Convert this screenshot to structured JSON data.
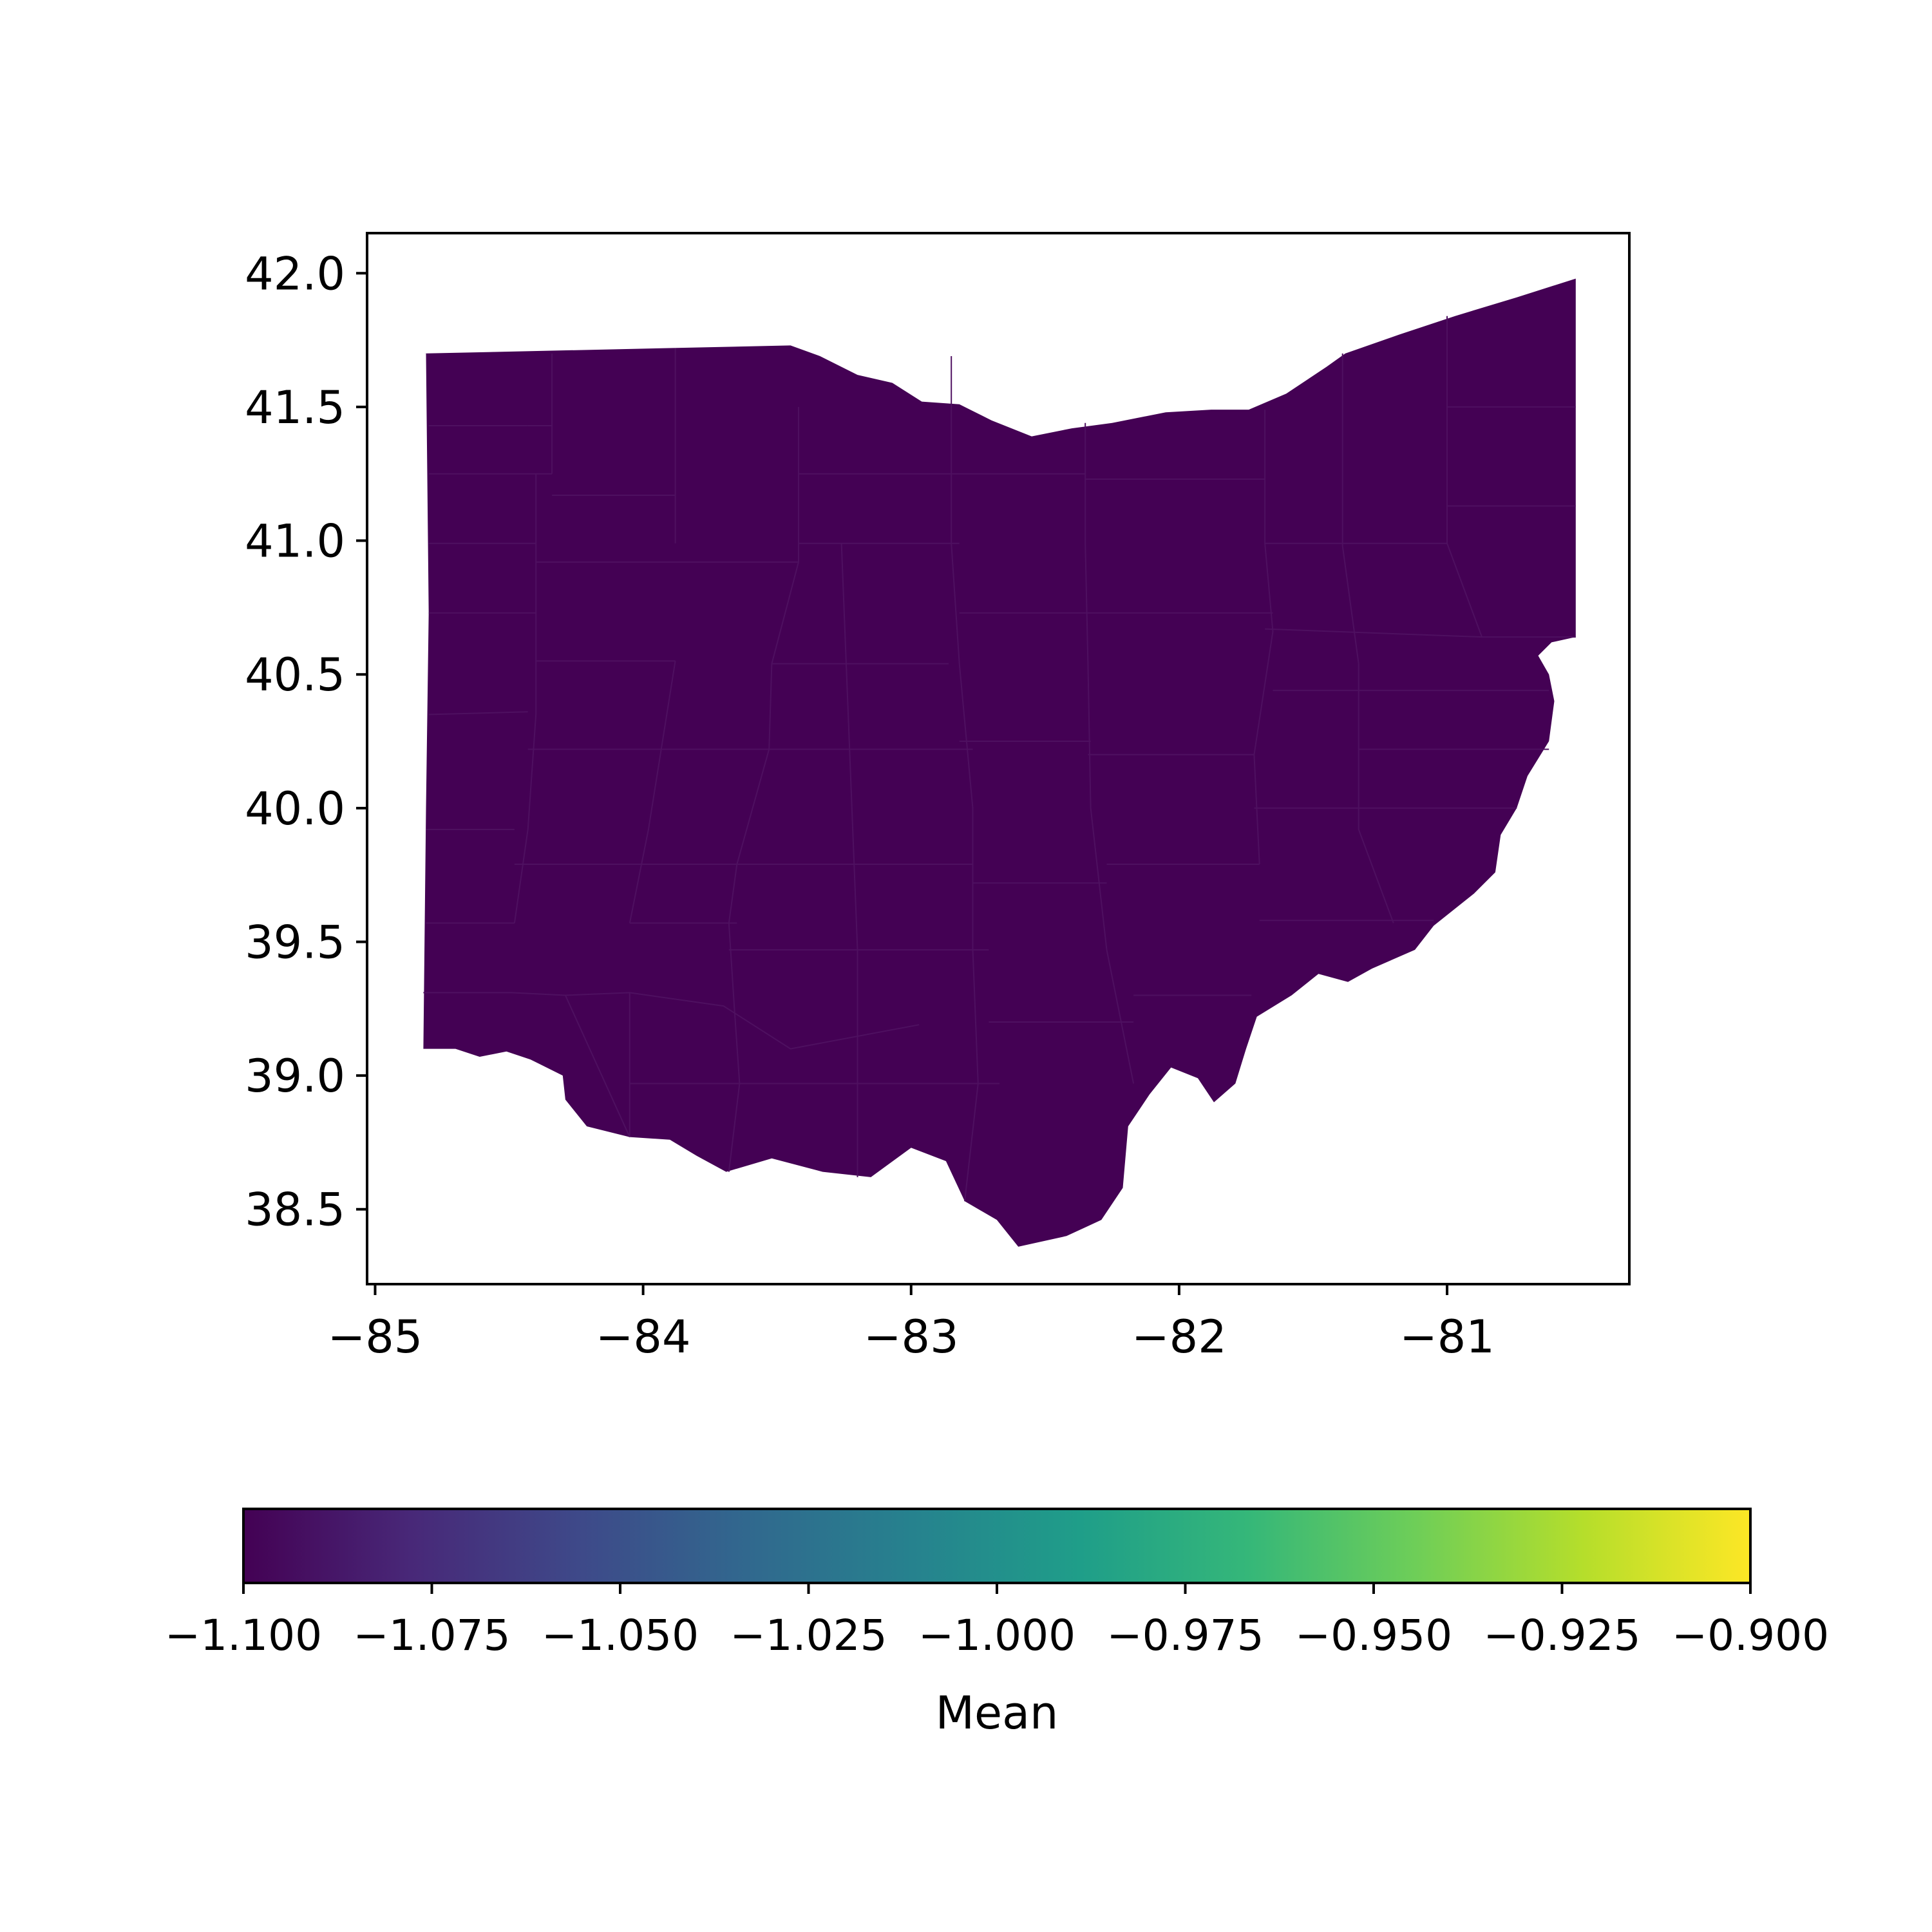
{
  "chart_data": {
    "type": "choropleth map",
    "region": "Ohio counties",
    "fill_value": -1.1,
    "x_axis": {
      "ticks": [
        -85,
        -84,
        -83,
        -82,
        -81
      ],
      "tick_labels": [
        "−85",
        "−84",
        "−83",
        "−82",
        "−81"
      ],
      "range": [
        -85.03,
        -80.32
      ]
    },
    "y_axis": {
      "ticks": [
        38.5,
        39.0,
        39.5,
        40.0,
        40.5,
        41.0,
        41.5,
        42.0
      ],
      "tick_labels": [
        "38.5",
        "39.0",
        "39.5",
        "40.0",
        "40.5",
        "41.0",
        "41.5",
        "42.0"
      ],
      "range": [
        38.22,
        42.15
      ]
    },
    "grid": false,
    "colorbar": {
      "label": "Mean",
      "orientation": "horizontal",
      "placement": "bottom",
      "colormap": "viridis",
      "range": [
        -1.1,
        -0.9
      ],
      "ticks": [
        -1.1,
        -1.075,
        -1.05,
        -1.025,
        -1.0,
        -0.975,
        -0.95,
        -0.925,
        -0.9
      ],
      "tick_labels": [
        "−1.100",
        "−1.075",
        "−1.050",
        "−1.025",
        "−1.000",
        "−0.975",
        "−0.950",
        "−0.925",
        "−0.900"
      ],
      "gradient_stops": [
        "#440154",
        "#482878",
        "#3e4989",
        "#31688e",
        "#26828e",
        "#1f9e89",
        "#35b779",
        "#6ece58",
        "#b5de2b",
        "#fde725"
      ]
    },
    "colors": {
      "region_fill": "#440154",
      "county_border": "#4e1060"
    },
    "outline_lonlat": [
      [
        -84.82,
        41.7
      ],
      [
        -83.45,
        41.73
      ],
      [
        -83.34,
        41.69
      ],
      [
        -83.2,
        41.62
      ],
      [
        -83.07,
        41.59
      ],
      [
        -82.96,
        41.52
      ],
      [
        -82.82,
        41.51
      ],
      [
        -82.7,
        41.45
      ],
      [
        -82.55,
        41.39
      ],
      [
        -82.4,
        41.42
      ],
      [
        -82.25,
        41.44
      ],
      [
        -82.05,
        41.48
      ],
      [
        -81.88,
        41.49
      ],
      [
        -81.74,
        41.49
      ],
      [
        -81.6,
        41.55
      ],
      [
        -81.45,
        41.65
      ],
      [
        -81.38,
        41.7
      ],
      [
        -81.18,
        41.77
      ],
      [
        -80.97,
        41.84
      ],
      [
        -80.74,
        41.91
      ],
      [
        -80.52,
        41.98
      ],
      [
        -80.52,
        40.64
      ],
      [
        -80.61,
        40.62
      ],
      [
        -80.66,
        40.57
      ],
      [
        -80.62,
        40.5
      ],
      [
        -80.6,
        40.4
      ],
      [
        -80.62,
        40.25
      ],
      [
        -80.7,
        40.12
      ],
      [
        -80.74,
        40.0
      ],
      [
        -80.8,
        39.9
      ],
      [
        -80.82,
        39.76
      ],
      [
        -80.9,
        39.68
      ],
      [
        -81.05,
        39.56
      ],
      [
        -81.12,
        39.47
      ],
      [
        -81.28,
        39.4
      ],
      [
        -81.37,
        39.35
      ],
      [
        -81.48,
        39.38
      ],
      [
        -81.58,
        39.3
      ],
      [
        -81.71,
        39.22
      ],
      [
        -81.75,
        39.1
      ],
      [
        -81.79,
        38.97
      ],
      [
        -81.87,
        38.9
      ],
      [
        -81.93,
        38.99
      ],
      [
        -82.03,
        39.03
      ],
      [
        -82.11,
        38.93
      ],
      [
        -82.19,
        38.81
      ],
      [
        -82.21,
        38.58
      ],
      [
        -82.29,
        38.46
      ],
      [
        -82.42,
        38.4
      ],
      [
        -82.6,
        38.36
      ],
      [
        -82.68,
        38.46
      ],
      [
        -82.8,
        38.53
      ],
      [
        -82.87,
        38.68
      ],
      [
        -83.0,
        38.73
      ],
      [
        -83.15,
        38.62
      ],
      [
        -83.33,
        38.64
      ],
      [
        -83.52,
        38.69
      ],
      [
        -83.69,
        38.64
      ],
      [
        -83.8,
        38.7
      ],
      [
        -83.9,
        38.76
      ],
      [
        -84.05,
        38.77
      ],
      [
        -84.21,
        38.81
      ],
      [
        -84.29,
        38.91
      ],
      [
        -84.3,
        39.0
      ],
      [
        -84.42,
        39.06
      ],
      [
        -84.51,
        39.09
      ],
      [
        -84.61,
        39.07
      ],
      [
        -84.7,
        39.1
      ],
      [
        -84.82,
        39.1
      ],
      [
        -84.81,
        40.0
      ],
      [
        -84.8,
        40.73
      ],
      [
        -84.81,
        41.7
      ]
    ],
    "county_lines_lonlat": [
      [
        [
          -84.8,
          41.43
        ],
        [
          -84.43,
          41.43
        ]
      ],
      [
        [
          -84.8,
          41.25
        ],
        [
          -84.34,
          41.25
        ]
      ],
      [
        [
          -84.8,
          40.99
        ],
        [
          -84.4,
          40.99
        ]
      ],
      [
        [
          -84.8,
          40.73
        ],
        [
          -84.4,
          40.73
        ]
      ],
      [
        [
          -84.8,
          40.35
        ],
        [
          -84.43,
          40.36
        ]
      ],
      [
        [
          -84.81,
          39.92
        ],
        [
          -84.48,
          39.92
        ]
      ],
      [
        [
          -84.81,
          39.57
        ],
        [
          -84.48,
          39.57
        ]
      ],
      [
        [
          -84.82,
          39.31
        ],
        [
          -84.49,
          39.31
        ],
        [
          -84.29,
          39.3
        ],
        [
          -84.05,
          39.31
        ],
        [
          -83.7,
          39.26
        ],
        [
          -83.45,
          39.1
        ],
        [
          -82.97,
          39.19
        ]
      ],
      [
        [
          -84.34,
          41.7
        ],
        [
          -84.34,
          41.25
        ]
      ],
      [
        [
          -84.4,
          41.25
        ],
        [
          -84.4,
          40.35
        ],
        [
          -84.43,
          39.92
        ],
        [
          -84.48,
          39.57
        ]
      ],
      [
        [
          -84.43,
          41.43
        ],
        [
          -84.34,
          41.43
        ]
      ],
      [
        [
          -83.88,
          41.72
        ],
        [
          -83.88,
          40.99
        ]
      ],
      [
        [
          -84.34,
          41.17
        ],
        [
          -83.88,
          41.17
        ]
      ],
      [
        [
          -84.4,
          40.92
        ],
        [
          -83.42,
          40.92
        ]
      ],
      [
        [
          -84.4,
          40.55
        ],
        [
          -83.88,
          40.55
        ]
      ],
      [
        [
          -84.43,
          40.22
        ],
        [
          -83.51,
          40.22
        ]
      ],
      [
        [
          -84.48,
          39.79
        ],
        [
          -83.65,
          39.79
        ]
      ],
      [
        [
          -83.88,
          40.55
        ],
        [
          -83.98,
          39.92
        ],
        [
          -84.05,
          39.57
        ]
      ],
      [
        [
          -84.05,
          39.57
        ],
        [
          -83.65,
          39.57
        ]
      ],
      [
        [
          -83.42,
          41.5
        ],
        [
          -83.42,
          40.92
        ],
        [
          -83.52,
          40.54
        ],
        [
          -83.53,
          40.22
        ],
        [
          -83.65,
          39.79
        ],
        [
          -83.68,
          39.57
        ],
        [
          -83.66,
          39.26
        ],
        [
          -83.64,
          38.97
        ],
        [
          -83.68,
          38.64
        ]
      ],
      [
        [
          -83.42,
          41.25
        ],
        [
          -82.85,
          41.25
        ]
      ],
      [
        [
          -83.42,
          40.99
        ],
        [
          -82.82,
          40.99
        ]
      ],
      [
        [
          -83.52,
          40.54
        ],
        [
          -82.86,
          40.54
        ]
      ],
      [
        [
          -83.53,
          40.22
        ],
        [
          -82.77,
          40.22
        ]
      ],
      [
        [
          -83.65,
          39.79
        ],
        [
          -82.77,
          39.79
        ]
      ],
      [
        [
          -83.68,
          39.47
        ],
        [
          -82.71,
          39.47
        ]
      ],
      [
        [
          -83.64,
          38.97
        ],
        [
          -82.67,
          38.97
        ]
      ],
      [
        [
          -84.05,
          38.97
        ],
        [
          -83.64,
          38.97
        ]
      ],
      [
        [
          -84.29,
          39.3
        ],
        [
          -84.05,
          38.77
        ]
      ],
      [
        [
          -84.05,
          39.31
        ],
        [
          -84.05,
          38.77
        ]
      ],
      [
        [
          -83.26,
          40.99
        ],
        [
          -83.2,
          39.47
        ],
        [
          -83.2,
          38.62
        ]
      ],
      [
        [
          -82.85,
          41.69
        ],
        [
          -82.85,
          40.99
        ],
        [
          -82.82,
          40.54
        ],
        [
          -82.77,
          40.0
        ],
        [
          -82.77,
          39.47
        ],
        [
          -82.75,
          38.97
        ],
        [
          -82.8,
          38.53
        ]
      ],
      [
        [
          -82.35,
          41.44
        ],
        [
          -82.35,
          40.99
        ],
        [
          -82.34,
          40.54
        ],
        [
          -82.33,
          40.0
        ],
        [
          -82.27,
          39.47
        ],
        [
          -82.17,
          38.97
        ]
      ],
      [
        [
          -82.85,
          41.25
        ],
        [
          -82.35,
          41.25
        ]
      ],
      [
        [
          -82.82,
          40.73
        ],
        [
          -82.35,
          40.73
        ]
      ],
      [
        [
          -82.82,
          40.25
        ],
        [
          -82.33,
          40.25
        ]
      ],
      [
        [
          -82.77,
          39.72
        ],
        [
          -82.27,
          39.72
        ]
      ],
      [
        [
          -82.71,
          39.2
        ],
        [
          -82.17,
          39.2
        ]
      ],
      [
        [
          -82.35,
          41.23
        ],
        [
          -81.68,
          41.23
        ]
      ],
      [
        [
          -82.35,
          40.73
        ],
        [
          -81.65,
          40.73
        ]
      ],
      [
        [
          -82.34,
          40.2
        ],
        [
          -81.72,
          40.2
        ]
      ],
      [
        [
          -82.27,
          39.79
        ],
        [
          -81.7,
          39.79
        ]
      ],
      [
        [
          -82.17,
          39.3
        ],
        [
          -81.73,
          39.3
        ]
      ],
      [
        [
          -81.68,
          41.49
        ],
        [
          -81.68,
          40.99
        ],
        [
          -81.65,
          40.66
        ],
        [
          -81.72,
          40.2
        ],
        [
          -81.7,
          39.79
        ]
      ],
      [
        [
          -81.68,
          40.99
        ],
        [
          -81.0,
          40.99
        ]
      ],
      [
        [
          -81.39,
          41.7
        ],
        [
          -81.39,
          40.98
        ],
        [
          -81.33,
          40.54
        ]
      ],
      [
        [
          -81.0,
          41.84
        ],
        [
          -81.0,
          40.99
        ],
        [
          -80.87,
          40.64
        ]
      ],
      [
        [
          -81.0,
          41.5
        ],
        [
          -80.52,
          41.5
        ]
      ],
      [
        [
          -80.52,
          41.13
        ],
        [
          -81.0,
          41.13
        ]
      ],
      [
        [
          -81.68,
          40.67
        ],
        [
          -80.87,
          40.64
        ],
        [
          -80.52,
          40.64
        ]
      ],
      [
        [
          -81.65,
          40.44
        ],
        [
          -80.62,
          40.44
        ]
      ],
      [
        [
          -81.72,
          40.0
        ],
        [
          -80.74,
          40.0
        ]
      ],
      [
        [
          -81.33,
          40.54
        ],
        [
          -81.33,
          39.92
        ],
        [
          -81.2,
          39.57
        ]
      ],
      [
        [
          -81.33,
          40.22
        ],
        [
          -80.62,
          40.22
        ]
      ],
      [
        [
          -81.7,
          39.58
        ],
        [
          -81.05,
          39.58
        ]
      ]
    ]
  }
}
